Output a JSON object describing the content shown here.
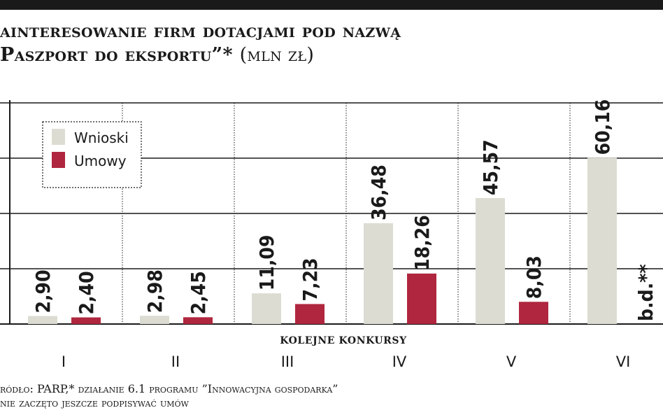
{
  "title_line1": "ainteresowanie firm dotacjami pod nazwą",
  "title_line2": "Paszport do eksportu”*",
  "title_unit": "(mln zł)",
  "colors": {
    "wnioski": "#dcdcd2",
    "umowy": "#b0263f",
    "grid": "#1a1a1a"
  },
  "chart_data": {
    "type": "bar",
    "xlabel": "kolejne konkursy",
    "ylabel": "",
    "ylim": [
      0,
      80
    ],
    "categories": [
      "I",
      "II",
      "III",
      "IV",
      "V",
      "VI"
    ],
    "series": [
      {
        "name": "Wnioski",
        "values": [
          2.9,
          2.98,
          11.09,
          36.48,
          45.57,
          60.16
        ],
        "labels": [
          "2,90",
          "2,98",
          "11,09",
          "36,48",
          "45,57",
          "60,16"
        ]
      },
      {
        "name": "Umowy",
        "values": [
          2.4,
          2.45,
          7.23,
          18.26,
          8.03,
          null
        ],
        "labels": [
          "2,40",
          "2,45",
          "7,23",
          "18,26",
          "8,03",
          "b.d.**"
        ]
      }
    ],
    "legend_position": "top-left",
    "grid": true
  },
  "footer_line1": "ródło: PARP,* działanie 6.1 programu ”Innowacyjna gospodarka”",
  "footer_line2": "nie zaczęto jeszcze podpisywać umów"
}
